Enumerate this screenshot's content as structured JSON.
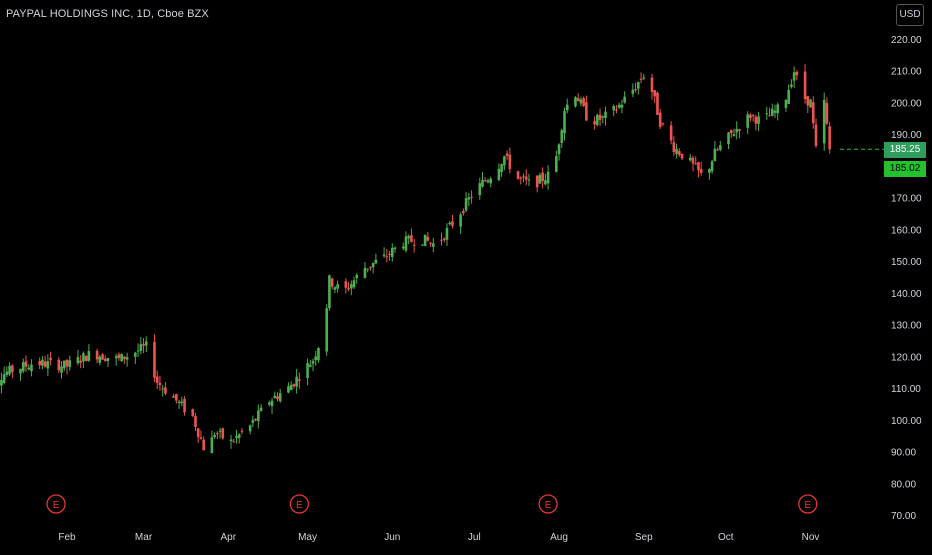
{
  "header": {
    "title": "PAYPAL HOLDINGS INC, 1D, Cboe BZX",
    "currency": "USD"
  },
  "colors": {
    "background": "#000000",
    "up": "#26a69a",
    "down": "#ef5350",
    "up_bright": "#4caf50",
    "axis_text": "#d1d4dc",
    "earnings_marker": "#e53935",
    "last_price_line": "#22c12d"
  },
  "price_labels": {
    "last": "185.25",
    "close": "185.02"
  },
  "earnings_markers": [
    {
      "label": "E",
      "month": "Feb"
    },
    {
      "label": "E",
      "month": "May"
    },
    {
      "label": "E",
      "month": "Aug"
    },
    {
      "label": "E",
      "month": "Nov"
    }
  ],
  "chart_data": {
    "type": "candlestick",
    "title": "PAYPAL HOLDINGS INC, 1D, Cboe BZX",
    "ylim": [
      70,
      230
    ],
    "yticks": [
      "220.00",
      "210.00",
      "200.00",
      "190.00",
      "180.00",
      "170.00",
      "160.00",
      "150.00",
      "140.00",
      "130.00",
      "120.00",
      "110.00",
      "100.00",
      "90.00",
      "80.00",
      "70.00"
    ],
    "x_tick_labels": [
      "Feb",
      "Mar",
      "Apr",
      "May",
      "Jun",
      "Jul",
      "Aug",
      "Sep",
      "Oct",
      "Nov"
    ],
    "close_path": [
      [
        "Jan 01",
        111
      ],
      [
        "Jan 10",
        115
      ],
      [
        "Jan 20",
        118
      ],
      [
        "Feb 01",
        117
      ],
      [
        "Feb 10",
        121
      ],
      [
        "Feb 20",
        119
      ],
      [
        "Mar 01",
        123
      ],
      [
        "Mar 05",
        112
      ],
      [
        "Mar 12",
        106
      ],
      [
        "Mar 18",
        101
      ],
      [
        "Mar 23",
        89
      ],
      [
        "Mar 26",
        96
      ],
      [
        "Apr 01",
        93
      ],
      [
        "Apr 08",
        98
      ],
      [
        "Apr 15",
        106
      ],
      [
        "Apr 22",
        110
      ],
      [
        "May 01",
        119
      ],
      [
        "May 05",
        128
      ],
      [
        "May 07",
        144
      ],
      [
        "May 12",
        140
      ],
      [
        "May 20",
        148
      ],
      [
        "May 27",
        151
      ],
      [
        "Jun 03",
        156
      ],
      [
        "Jun 10",
        157
      ],
      [
        "Jun 15",
        155
      ],
      [
        "Jun 22",
        163
      ],
      [
        "Jun 29",
        172
      ],
      [
        "Jul 06",
        178
      ],
      [
        "Jul 10",
        183
      ],
      [
        "Jul 15",
        176
      ],
      [
        "Jul 20",
        174
      ],
      [
        "Jul 28",
        178
      ],
      [
        "Aug 01",
        198
      ],
      [
        "Aug 05",
        203
      ],
      [
        "Aug 10",
        194
      ],
      [
        "Aug 15",
        195
      ],
      [
        "Aug 20",
        198
      ],
      [
        "Aug 27",
        205
      ],
      [
        "Aug 31",
        210
      ],
      [
        "Sep 05",
        194
      ],
      [
        "Sep 10",
        186
      ],
      [
        "Sep 15",
        182
      ],
      [
        "Sep 21",
        176
      ],
      [
        "Sep 25",
        184
      ],
      [
        "Oct 01",
        190
      ],
      [
        "Oct 08",
        196
      ],
      [
        "Oct 12",
        194
      ],
      [
        "Oct 20",
        199
      ],
      [
        "Oct 24",
        210
      ],
      [
        "Oct 27",
        202
      ],
      [
        "Oct 30",
        200
      ],
      [
        "Nov 01",
        185
      ],
      [
        "Nov 04",
        200
      ],
      [
        "Nov 06",
        185
      ]
    ],
    "last_price": 185.25,
    "close_price": 185.02,
    "grid": false
  }
}
